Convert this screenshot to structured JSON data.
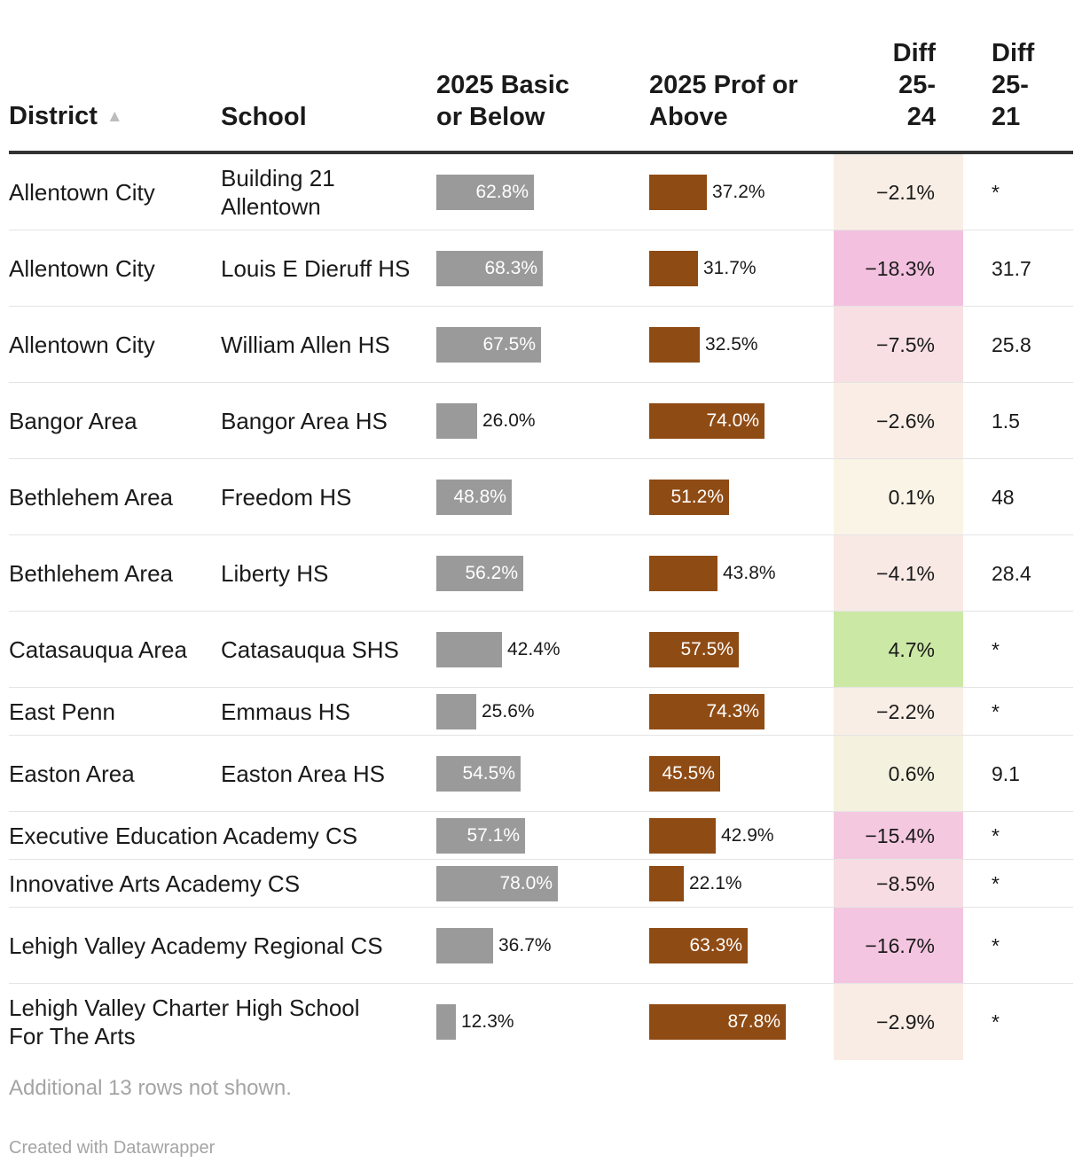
{
  "columns": {
    "district": "District",
    "school": "School",
    "basic": "2025 Basic\nor Below",
    "prof": "2025 Prof or\nAbove",
    "diff_25_24": "Diff\n25-\n24",
    "diff_25_21": "Diff\n25-\n21"
  },
  "sort_icon": "sort-ascending-icon",
  "chart_data": {
    "type": "table",
    "sorted_by": "District",
    "sort_order": "ascending",
    "columns": [
      "District",
      "School",
      "2025 Basic or Below",
      "2025 Prof or Above",
      "Diff 25-24",
      "Diff 25-21"
    ],
    "rows": [
      {
        "district": "Allentown City",
        "school": "Building 21 Allentown",
        "basic": 62.8,
        "basic_label": "62.8%",
        "prof": 37.2,
        "prof_label": "37.2%",
        "diff_25_24": -2.1,
        "diff_25_24_label": "−2.1%",
        "diff_25_21": "*"
      },
      {
        "district": "Allentown City",
        "school": "Louis E Dieruff HS",
        "basic": 68.3,
        "basic_label": "68.3%",
        "prof": 31.7,
        "prof_label": "31.7%",
        "diff_25_24": -18.3,
        "diff_25_24_label": "−18.3%",
        "diff_25_21": "31.7"
      },
      {
        "district": "Allentown City",
        "school": "William Allen HS",
        "basic": 67.5,
        "basic_label": "67.5%",
        "prof": 32.5,
        "prof_label": "32.5%",
        "diff_25_24": -7.5,
        "diff_25_24_label": "−7.5%",
        "diff_25_21": "25.8"
      },
      {
        "district": "Bangor Area",
        "school": "Bangor Area HS",
        "basic": 26.0,
        "basic_label": "26.0%",
        "prof": 74.0,
        "prof_label": "74.0%",
        "diff_25_24": -2.6,
        "diff_25_24_label": "−2.6%",
        "diff_25_21": "1.5"
      },
      {
        "district": "Bethlehem Area",
        "school": "Freedom HS",
        "basic": 48.8,
        "basic_label": "48.8%",
        "prof": 51.2,
        "prof_label": "51.2%",
        "diff_25_24": 0.1,
        "diff_25_24_label": "0.1%",
        "diff_25_21": "48"
      },
      {
        "district": "Bethlehem Area",
        "school": "Liberty HS",
        "basic": 56.2,
        "basic_label": "56.2%",
        "prof": 43.8,
        "prof_label": "43.8%",
        "diff_25_24": -4.1,
        "diff_25_24_label": "−4.1%",
        "diff_25_21": "28.4"
      },
      {
        "district": "Catasauqua Area",
        "school": "Catasauqua SHS",
        "basic": 42.4,
        "basic_label": "42.4%",
        "prof": 57.5,
        "prof_label": "57.5%",
        "diff_25_24": 4.7,
        "diff_25_24_label": "4.7%",
        "diff_25_21": "*"
      },
      {
        "district": "East Penn",
        "school": "Emmaus HS",
        "basic": 25.6,
        "basic_label": "25.6%",
        "prof": 74.3,
        "prof_label": "74.3%",
        "diff_25_24": -2.2,
        "diff_25_24_label": "−2.2%",
        "diff_25_21": "*"
      },
      {
        "district": "Easton Area",
        "school": "Easton Area HS",
        "basic": 54.5,
        "basic_label": "54.5%",
        "prof": 45.5,
        "prof_label": "45.5%",
        "diff_25_24": 0.6,
        "diff_25_24_label": "0.6%",
        "diff_25_21": "9.1"
      },
      {
        "district": "",
        "school": "Executive Education Academy CS",
        "basic": 57.1,
        "basic_label": "57.1%",
        "prof": 42.9,
        "prof_label": "42.9%",
        "diff_25_24": -15.4,
        "diff_25_24_label": "−15.4%",
        "diff_25_21": "*"
      },
      {
        "district": "",
        "school": "Innovative Arts Academy CS",
        "basic": 78.0,
        "basic_label": "78.0%",
        "prof": 22.1,
        "prof_label": "22.1%",
        "diff_25_24": -8.5,
        "diff_25_24_label": "−8.5%",
        "diff_25_21": "*"
      },
      {
        "district": "",
        "school": "Lehigh Valley Academy Regional CS",
        "basic": 36.7,
        "basic_label": "36.7%",
        "prof": 63.3,
        "prof_label": "63.3%",
        "diff_25_24": -16.7,
        "diff_25_24_label": "−16.7%",
        "diff_25_21": "*"
      },
      {
        "district": "",
        "school": "Lehigh Valley Charter High School For The Arts",
        "basic": 12.3,
        "basic_label": "12.3%",
        "prof": 87.8,
        "prof_label": "87.8%",
        "diff_25_24": -2.9,
        "diff_25_24_label": "−2.9%",
        "diff_25_21": "*"
      }
    ],
    "bar_colors": {
      "basic": "#9a9a9a",
      "prof": "#8f4b14"
    },
    "diff_scale": {
      "min": -18.3,
      "max": 4.7,
      "negative_strong": "#f3c1df",
      "neutral": "#faf4e6",
      "positive_strong": "#cbe8a5"
    }
  },
  "footnote": "Additional 13 rows not shown.",
  "credit": "Created with Datawrapper"
}
